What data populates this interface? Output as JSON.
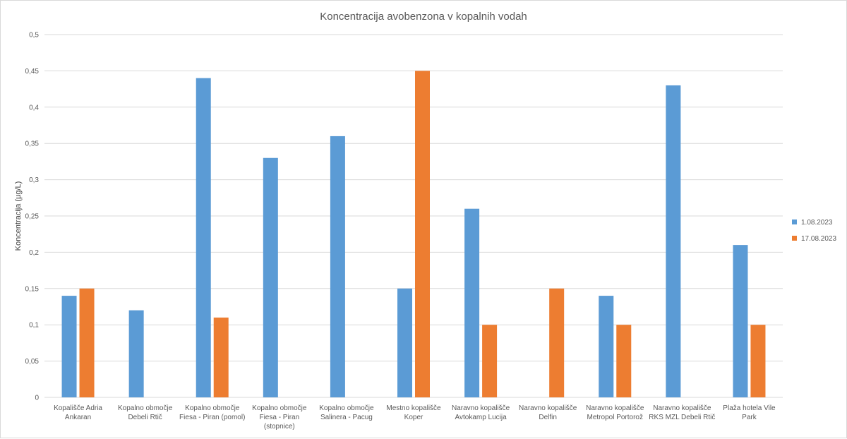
{
  "chart_data": {
    "type": "bar",
    "title": "Koncentracija avobenzona v kopalnih vodah",
    "xlabel": "",
    "ylabel": "Koncentracija (µg/L)",
    "ylim": [
      0,
      0.5
    ],
    "yticks": [
      "0",
      "0,05",
      "0,1",
      "0,15",
      "0,2",
      "0,25",
      "0,3",
      "0,35",
      "0,4",
      "0,45",
      "0,5"
    ],
    "grid": true,
    "legend_position": "right",
    "categories": [
      [
        "Kopališče Adria",
        "Ankaran"
      ],
      [
        "Kopalno območje",
        "Debeli Rtič"
      ],
      [
        "Kopalno območje",
        "Fiesa - Piran (pomol)"
      ],
      [
        "Kopalno območje",
        "Fiesa - Piran",
        "(stopnice)"
      ],
      [
        "Kopalno območje",
        "Salinera - Pacug"
      ],
      [
        "Mestno kopališče",
        "Koper"
      ],
      [
        "Naravno kopališče",
        "Avtokamp Lucija"
      ],
      [
        "Naravno kopališče",
        "Delfin"
      ],
      [
        "Naravno kopališče",
        "Metropol Portorož"
      ],
      [
        "Naravno kopališče",
        "RKS MZL Debeli Rtič"
      ],
      [
        "Plaža hotela Vile",
        "Park"
      ]
    ],
    "series": [
      {
        "name": "1.08.2023",
        "color": "#5b9bd5",
        "values": [
          0.14,
          0.12,
          0.44,
          0.33,
          0.36,
          0.15,
          0.26,
          null,
          0.14,
          0.43,
          0.21
        ]
      },
      {
        "name": "17.08.2023",
        "color": "#ed7d31",
        "values": [
          0.15,
          null,
          0.11,
          null,
          null,
          0.45,
          0.1,
          0.15,
          0.1,
          null,
          0.1
        ]
      }
    ]
  }
}
